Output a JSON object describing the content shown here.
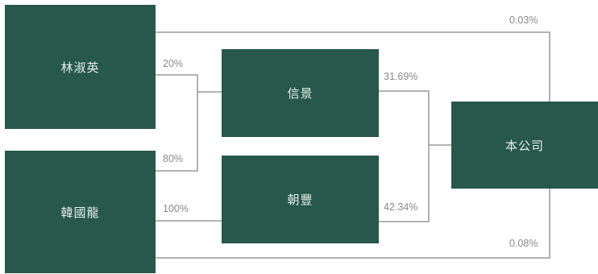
{
  "colors": {
    "box_fill": "#27584b",
    "box_text": "#e6eeea",
    "line": "#9a9a9a",
    "percent_text": "#8a8a8a",
    "background": "#ffffff"
  },
  "entities": {
    "lin": "林淑英",
    "han": "韓國龍",
    "xinjing": "信景",
    "chaofeng": "朝豐",
    "company": "本公司"
  },
  "stakes": {
    "lin_to_xinjing": "20%",
    "han_to_xinjing": "80%",
    "han_to_chaofeng": "100%",
    "xinjing_to_company": "31.69%",
    "chaofeng_to_company": "42.34%",
    "lin_to_company": "0.03%",
    "han_to_company": "0.08%"
  }
}
